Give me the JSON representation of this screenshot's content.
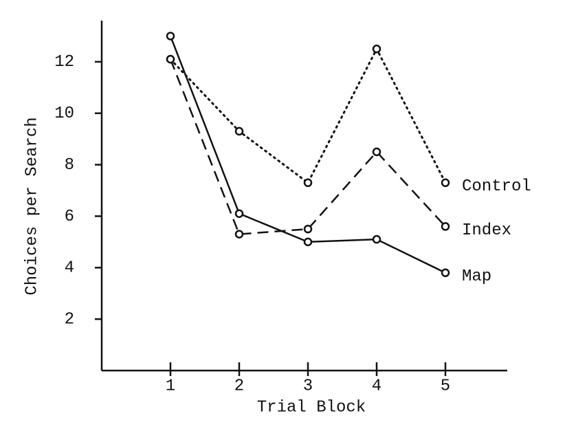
{
  "chart_data": {
    "type": "line",
    "x_label": "Trial Block",
    "y_label": "Choices per Search",
    "x": [
      1,
      2,
      3,
      4,
      5
    ],
    "series": [
      {
        "name": "Control",
        "color": "#111111",
        "line_style": "dotted",
        "values": [
          12.1,
          9.3,
          7.3,
          12.5,
          7.3
        ]
      },
      {
        "name": "Index",
        "color": "#111111",
        "line_style": "dashed",
        "values": [
          12.1,
          5.3,
          5.5,
          8.5,
          5.6
        ]
      },
      {
        "name": "Map",
        "color": "#111111",
        "line_style": "solid",
        "values": [
          13.0,
          6.1,
          5.0,
          5.1,
          3.8
        ]
      }
    ],
    "xlim": [
      0,
      5.9
    ],
    "xticks": [
      1,
      2,
      3,
      4,
      5
    ],
    "ylim": [
      0,
      13.6
    ],
    "yticks": [
      2,
      4,
      6,
      8,
      10,
      12
    ]
  }
}
